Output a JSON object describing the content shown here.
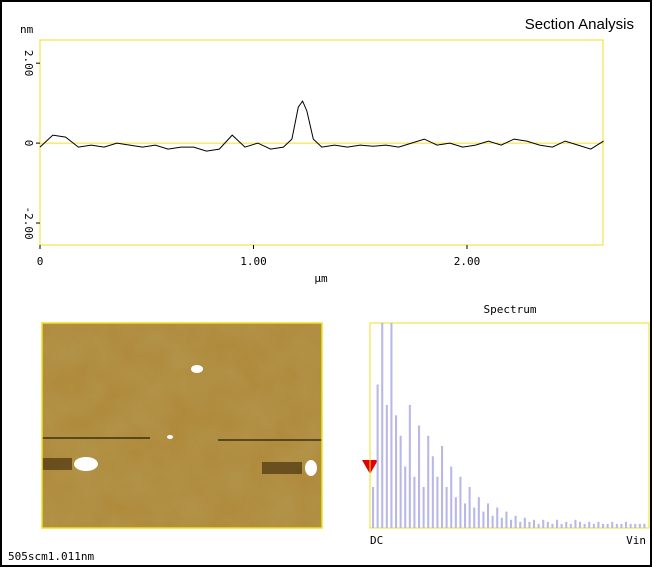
{
  "chart_data": [
    {
      "type": "line",
      "title": "Section Analysis",
      "y_label": "nm",
      "x_label": "µm",
      "x": [
        0,
        0.06,
        0.12,
        0.18,
        0.24,
        0.3,
        0.36,
        0.42,
        0.48,
        0.54,
        0.6,
        0.66,
        0.72,
        0.78,
        0.84,
        0.9,
        0.96,
        1.02,
        1.08,
        1.14,
        1.18,
        1.21,
        1.23,
        1.25,
        1.28,
        1.32,
        1.38,
        1.44,
        1.5,
        1.56,
        1.62,
        1.68,
        1.74,
        1.8,
        1.86,
        1.92,
        1.98,
        2.04,
        2.1,
        2.16,
        2.22,
        2.28,
        2.34,
        2.4,
        2.46,
        2.52,
        2.58,
        2.64
      ],
      "values": [
        -0.1,
        0.2,
        0.15,
        -0.1,
        -0.05,
        -0.1,
        0,
        -0.05,
        -0.1,
        -0.05,
        -0.15,
        -0.1,
        -0.1,
        -0.2,
        -0.15,
        0.2,
        -0.1,
        0,
        -0.15,
        -0.1,
        0.1,
        0.9,
        1.05,
        0.8,
        0.1,
        -0.1,
        -0.05,
        -0.1,
        -0.05,
        -0.08,
        -0.05,
        -0.1,
        0,
        0.1,
        -0.05,
        0,
        -0.1,
        -0.05,
        0.05,
        -0.05,
        0.1,
        0.05,
        -0.05,
        -0.1,
        0.05,
        -0.05,
        -0.15,
        0.05
      ],
      "color": "#000000",
      "frame_color": "#f0e020",
      "xlim": [
        0,
        2.637
      ],
      "ylim": [
        -2.55,
        2.58
      ],
      "xticks": [
        0,
        {
          "value": 1,
          "label": "1.00"
        },
        {
          "value": 2,
          "label": "2.00"
        }
      ],
      "yticks": [
        {
          "value": 2,
          "label": "2.00"
        },
        0,
        {
          "value": -2,
          "label": "-2.00"
        }
      ],
      "zero_line": true
    },
    {
      "type": "bar",
      "title": "Spectrum",
      "start_label": "DC",
      "end_label": "Vin",
      "color": "#b8b8e8",
      "frame_color": "#f0e020",
      "values": [
        20,
        70,
        100,
        60,
        100,
        55,
        45,
        30,
        60,
        25,
        50,
        20,
        45,
        35,
        25,
        40,
        20,
        30,
        15,
        25,
        12,
        20,
        10,
        15,
        8,
        12,
        6,
        10,
        5,
        8,
        4,
        6,
        3,
        5,
        3,
        4,
        2,
        4,
        3,
        2,
        4,
        2,
        3,
        2,
        4,
        3,
        2,
        3,
        2,
        3,
        2,
        2,
        3,
        2,
        2,
        3,
        2,
        2,
        2,
        2
      ],
      "ylim": [
        0,
        100
      ]
    }
  ],
  "caption": "505scm1.011nm"
}
